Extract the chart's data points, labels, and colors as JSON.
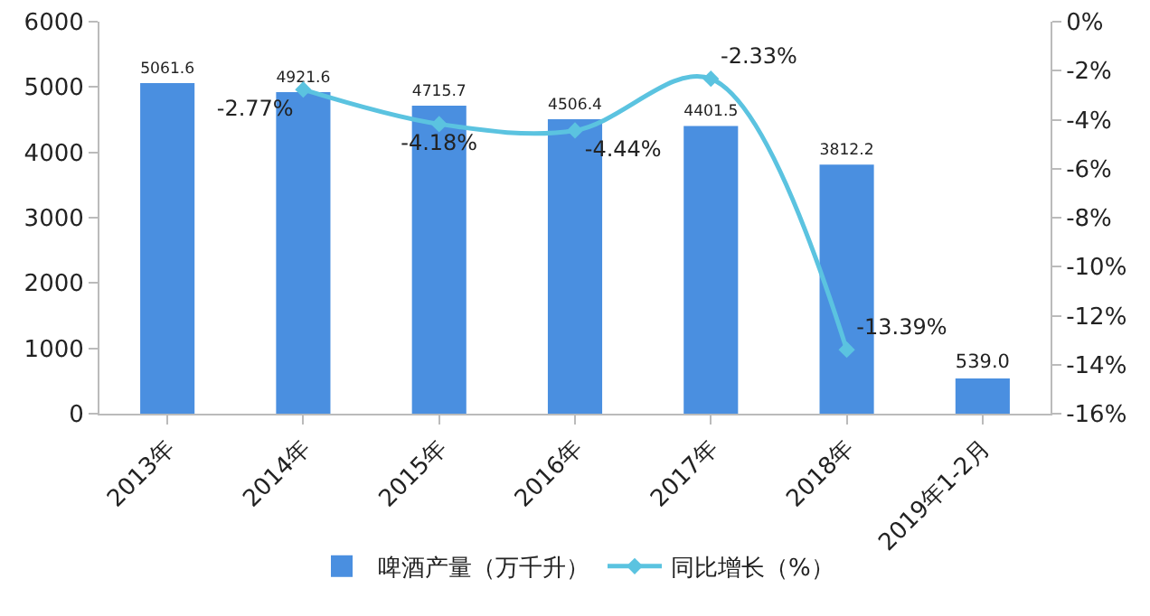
{
  "chart_data": {
    "type": "bar",
    "categories": [
      "2013年",
      "2014年",
      "2015年",
      "2016年",
      "2017年",
      "2018年",
      "2019年1-2月"
    ],
    "series": [
      {
        "name": "啤酒产量（万千升）",
        "color": "#4a8fe0",
        "values": [
          5061.6,
          4921.6,
          4715.7,
          4506.4,
          4401.5,
          3812.2,
          539.0
        ],
        "value_labels": [
          "5061.6",
          "4921.6",
          "4715.7",
          "4506.4",
          "4401.5",
          "3812.2",
          "539.0"
        ]
      },
      {
        "name": "同比增长（%）",
        "type": "line",
        "axis": "y2",
        "color": "#5bc3e0",
        "marker": "diamond",
        "values": [
          null,
          -2.77,
          -4.18,
          -4.44,
          -2.33,
          -13.39,
          null
        ],
        "value_labels": [
          null,
          "-2.77%",
          "-4.18%",
          "-4.44%",
          "-2.33%",
          "-13.39%",
          null
        ]
      }
    ],
    "ylim": [
      0,
      6000
    ],
    "yticks": [
      0,
      1000,
      2000,
      3000,
      4000,
      5000,
      6000
    ],
    "y2lim": [
      -16,
      0
    ],
    "y2ticks": [
      {
        "value": -16,
        "label": "-16%"
      },
      {
        "value": -14,
        "label": "-14%"
      },
      {
        "value": -12,
        "label": "-12%"
      },
      {
        "value": -10,
        "label": "-10%"
      },
      {
        "value": -8,
        "label": "-8%"
      },
      {
        "value": -6,
        "label": "-6%"
      },
      {
        "value": -4,
        "label": "-4%"
      },
      {
        "value": -2,
        "label": "-2%"
      },
      {
        "value": 0,
        "label": "0%"
      }
    ],
    "legend": "bottom",
    "grid": false
  }
}
